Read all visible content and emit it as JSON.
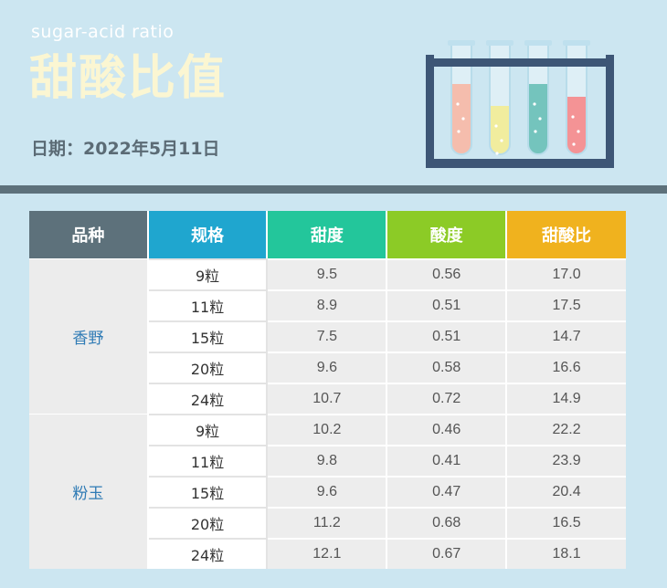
{
  "header": {
    "subtitle": "sugar-acid ratio",
    "title": "甜酸比值",
    "date": "日期：2022年5月11日"
  },
  "colors": {
    "background": "#cce6f1",
    "title": "#fbf6d2",
    "col_variety": "#5d717b",
    "col_spec": "#1fa6cf",
    "col_sweet": "#23c69b",
    "col_acid": "#8ccb26",
    "col_ratio": "#f0b21e"
  },
  "illustration": {
    "icon": "test-tube-rack-icon",
    "tube_colors": [
      "#f09a82",
      "#eae36a",
      "#2aa59a",
      "#ee5a5d"
    ]
  },
  "table": {
    "headers": [
      "品种",
      "规格",
      "甜度",
      "酸度",
      "甜酸比"
    ],
    "groups": [
      {
        "variety": "香野",
        "rows": [
          {
            "spec": "9粒",
            "sweet": "9.5",
            "acid": "0.56",
            "ratio": "17.0"
          },
          {
            "spec": "11粒",
            "sweet": "8.9",
            "acid": "0.51",
            "ratio": "17.5"
          },
          {
            "spec": "15粒",
            "sweet": "7.5",
            "acid": "0.51",
            "ratio": "14.7"
          },
          {
            "spec": "20粒",
            "sweet": "9.6",
            "acid": "0.58",
            "ratio": "16.6"
          },
          {
            "spec": "24粒",
            "sweet": "10.7",
            "acid": "0.72",
            "ratio": "14.9"
          }
        ]
      },
      {
        "variety": "粉玉",
        "rows": [
          {
            "spec": "9粒",
            "sweet": "10.2",
            "acid": "0.46",
            "ratio": "22.2"
          },
          {
            "spec": "11粒",
            "sweet": "9.8",
            "acid": "0.41",
            "ratio": "23.9"
          },
          {
            "spec": "15粒",
            "sweet": "9.6",
            "acid": "0.47",
            "ratio": "20.4"
          },
          {
            "spec": "20粒",
            "sweet": "11.2",
            "acid": "0.68",
            "ratio": "16.5"
          },
          {
            "spec": "24粒",
            "sweet": "12.1",
            "acid": "0.67",
            "ratio": "18.1"
          }
        ]
      }
    ]
  }
}
